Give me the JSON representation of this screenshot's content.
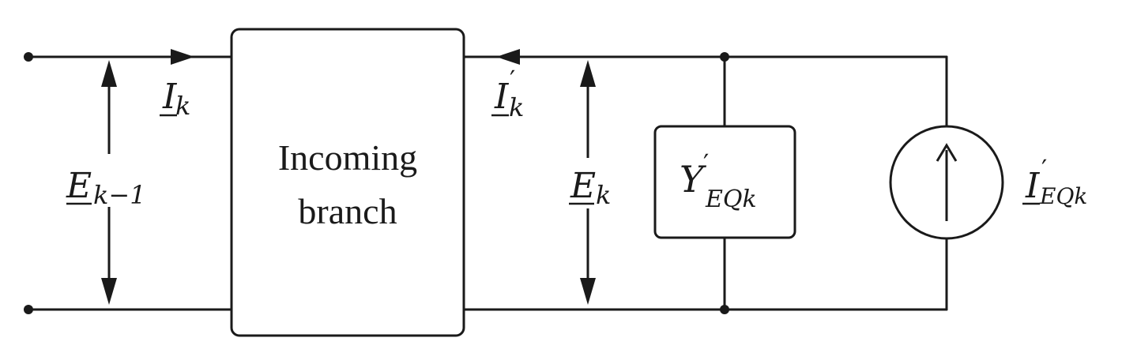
{
  "block": {
    "line1": "Incoming",
    "line2": "branch"
  },
  "labels": {
    "E_prev": {
      "main": "E",
      "sub": "k−1"
    },
    "I_in": {
      "main": "I",
      "sub": "k"
    },
    "I_out": {
      "main": "I",
      "prime": "′",
      "sub": "k"
    },
    "E_k": {
      "main": "E",
      "sub": "k"
    },
    "Y_eq": {
      "main": "Y",
      "prime": "′",
      "sub": "EQk"
    },
    "I_eq": {
      "main": "I",
      "prime": "′",
      "sub": "EQk"
    }
  },
  "colors": {
    "line": "#1a1a1a",
    "background": "#ffffff"
  }
}
